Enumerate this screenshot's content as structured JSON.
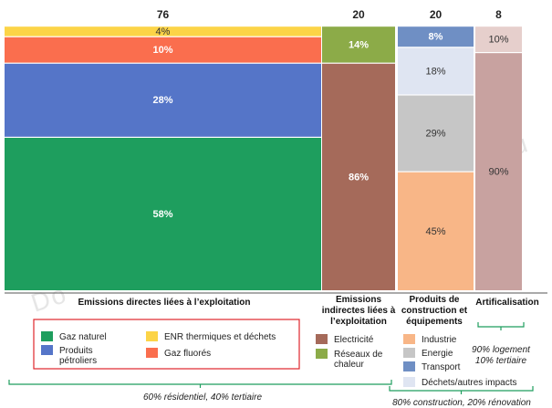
{
  "chart_data": {
    "type": "bar",
    "subtype": "mekko-stacked-percent",
    "columns": [
      {
        "category": "Emissions directes liées à l’exploitation",
        "total": 76,
        "total_label": "76",
        "segments": [
          {
            "name": "Gaz naturel",
            "value": 58,
            "label": "58%",
            "color": "#1e9e5e"
          },
          {
            "name": "Produits pétroliers",
            "value": 28,
            "label": "28%",
            "color": "#5575c8"
          },
          {
            "name": "Gaz fluorés",
            "value": 10,
            "label": "10%",
            "color": "#fa6e4e"
          },
          {
            "name": "ENR thermiques et déchets",
            "value": 4,
            "label": "4%",
            "color": "#fcd447"
          }
        ],
        "note": "60% résidentiel, 40% tertiaire"
      },
      {
        "category": "Emissions indirectes liées à l’exploitation",
        "total": 20,
        "total_label": "20",
        "segments": [
          {
            "name": "Electricité",
            "value": 86,
            "label": "86%",
            "color": "#a56a5a"
          },
          {
            "name": "Réseaux de chaleur",
            "value": 14,
            "label": "14%",
            "color": "#8cab48"
          }
        ]
      },
      {
        "category": "Produits de construction et équipements",
        "total": 20,
        "total_label": "20",
        "segments": [
          {
            "name": "Industrie",
            "value": 45,
            "label": "45%",
            "color": "#f8b687"
          },
          {
            "name": "Energie",
            "value": 29,
            "label": "29%",
            "color": "#c6c6c6"
          },
          {
            "name": "Déchets/autres impacts",
            "value": 18,
            "label": "18%",
            "color": "#dfe5f2"
          },
          {
            "name": "Transport",
            "value": 8,
            "label": "8%",
            "color": "#6f8fc4"
          }
        ],
        "note": "80% construction, 20% rénovation"
      },
      {
        "category": "Artificalisation",
        "total": 8,
        "total_label": "8",
        "segments": [
          {
            "name": "Artificalisation",
            "value": 90,
            "label": "90%",
            "color": "#c8a2a0"
          },
          {
            "name": "Artificalisation",
            "value": 10,
            "label": "10%",
            "color": "#e6cfcc"
          }
        ],
        "note_lines": [
          "90% logement",
          "10% tertiaire"
        ]
      }
    ],
    "legend_groups": [
      {
        "boxed": true,
        "items": [
          {
            "label_lines": [
              "Gaz naturel"
            ],
            "color": "#1e9e5e"
          },
          {
            "label_lines": [
              "ENR thermiques et déchets"
            ],
            "color": "#fcd447"
          },
          {
            "label_lines": [
              "Produits",
              "pétroliers"
            ],
            "color": "#5575c8"
          },
          {
            "label_lines": [
              "Gaz fluorés"
            ],
            "color": "#fa6e4e"
          }
        ]
      },
      {
        "boxed": false,
        "items": [
          {
            "label_lines": [
              "Electricité"
            ],
            "color": "#a56a5a"
          },
          {
            "label_lines": [
              "Réseaux de",
              "chaleur"
            ],
            "color": "#8cab48"
          }
        ]
      },
      {
        "boxed": false,
        "items": [
          {
            "label_lines": [
              "Industrie"
            ],
            "color": "#f8b687"
          },
          {
            "label_lines": [
              "Energie"
            ],
            "color": "#c6c6c6"
          },
          {
            "label_lines": [
              "Transport"
            ],
            "color": "#6f8fc4"
          },
          {
            "label_lines": [
              "Déchets/autres impacts"
            ],
            "color": "#dfe5f2"
          }
        ]
      }
    ],
    "category_label_lines": [
      [
        "Emissions directes liées à l’exploitation"
      ],
      [
        "Emissions",
        "indirectes liées à",
        "l’exploitation"
      ],
      [
        "Produits de",
        "construction et",
        "équipements"
      ],
      [
        "Artificalisation"
      ]
    ],
    "watermark": "Do"
  }
}
